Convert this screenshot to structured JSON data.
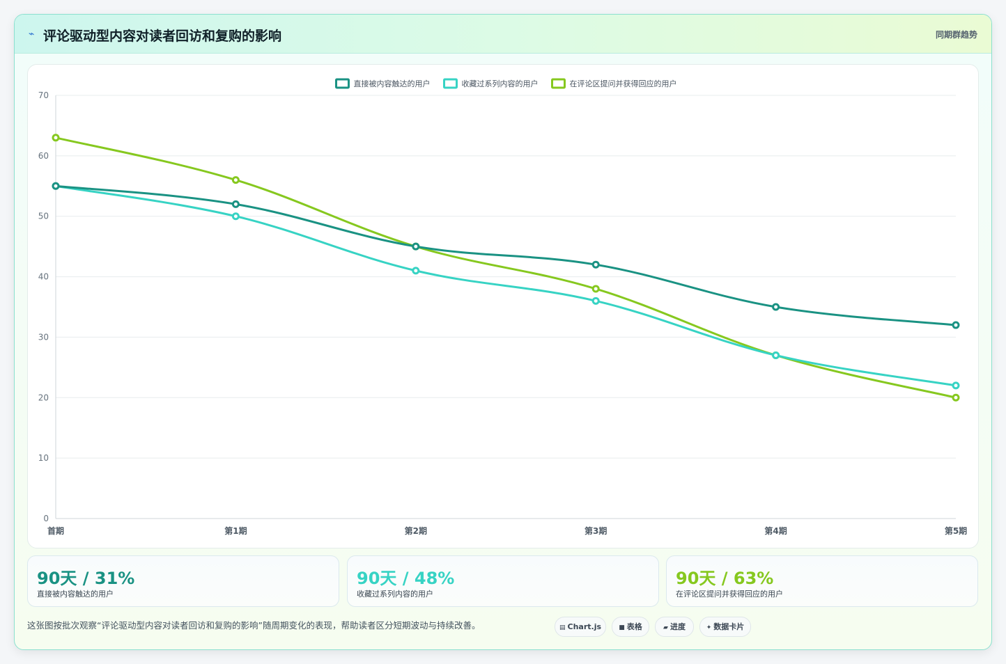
{
  "header": {
    "icon": "chart-spark-icon",
    "title": "评论驱动型内容对读者回访和复购的影响",
    "right_label": "同期群趋势"
  },
  "chart_data": {
    "type": "line",
    "title": "",
    "xlabel": "",
    "ylabel": "",
    "categories": [
      "首期",
      "第1期",
      "第2期",
      "第3期",
      "第4期",
      "第5期"
    ],
    "ylim": [
      0,
      70
    ],
    "yticks": [
      0,
      10,
      20,
      30,
      40,
      50,
      60,
      70
    ],
    "grid": true,
    "legend_position": "top",
    "series": [
      {
        "name": "直接被内容触达的用户",
        "color": "#1a9283",
        "values": [
          55,
          52,
          45,
          42,
          35,
          32
        ]
      },
      {
        "name": "收藏过系列内容的用户",
        "color": "#37d3c4",
        "values": [
          55,
          50,
          41,
          36,
          27,
          22
        ]
      },
      {
        "name": "在评论区提问并获得回应的用户",
        "color": "#86c81f",
        "values": [
          63,
          56,
          45,
          38,
          27,
          20
        ]
      }
    ]
  },
  "stats": [
    {
      "value": "90天 / 31%",
      "label": "直接被内容触达的用户",
      "color": "#1a9283"
    },
    {
      "value": "90天 / 48%",
      "label": "收藏过系列内容的用户",
      "color": "#37d3c4"
    },
    {
      "value": "90天 / 63%",
      "label": "在评论区提问并获得回应的用户",
      "color": "#86c81f"
    }
  ],
  "footer": {
    "description": "这张图按批次观察“评论驱动型内容对读者回访和复购的影响”随周期变化的表现，帮助读者区分短期波动与持续改善。",
    "tags": [
      {
        "icon": "chart-icon",
        "glyph": "▤",
        "label": "Chart.js"
      },
      {
        "icon": "table-icon",
        "glyph": "■",
        "label": "表格"
      },
      {
        "icon": "progress-icon",
        "glyph": "▰",
        "label": "进度"
      },
      {
        "icon": "card-icon",
        "glyph": "✦",
        "label": "数据卡片"
      }
    ]
  }
}
